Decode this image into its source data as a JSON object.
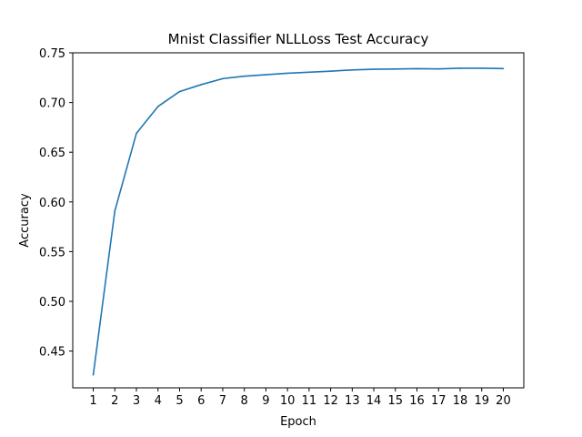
{
  "chart_data": {
    "type": "line",
    "title": "Mnist Classifier NLLLoss Test Accuracy",
    "xlabel": "Epoch",
    "ylabel": "Accuracy",
    "x": [
      1,
      2,
      3,
      4,
      5,
      6,
      7,
      8,
      9,
      10,
      11,
      12,
      13,
      14,
      15,
      16,
      17,
      18,
      19,
      20
    ],
    "xticks": [
      "1",
      "2",
      "3",
      "4",
      "5",
      "6",
      "7",
      "8",
      "9",
      "10",
      "11",
      "12",
      "13",
      "14",
      "15",
      "16",
      "17",
      "18",
      "19",
      "20"
    ],
    "yticks": [
      "0.45",
      "0.50",
      "0.55",
      "0.60",
      "0.65",
      "0.70",
      "0.75"
    ],
    "ytick_values": [
      0.45,
      0.5,
      0.55,
      0.6,
      0.65,
      0.7,
      0.75
    ],
    "ylim": [
      0.413,
      0.75
    ],
    "xlim": [
      0.05,
      20.95
    ],
    "series": [
      {
        "color": "#1f77b4",
        "values": [
          0.426,
          0.591,
          0.669,
          0.696,
          0.711,
          0.718,
          0.724,
          0.7265,
          0.728,
          0.7295,
          0.7305,
          0.7315,
          0.7328,
          0.7335,
          0.7337,
          0.734,
          0.7338,
          0.7345,
          0.7345,
          0.7341
        ]
      }
    ],
    "grid": false,
    "legend": "none"
  }
}
